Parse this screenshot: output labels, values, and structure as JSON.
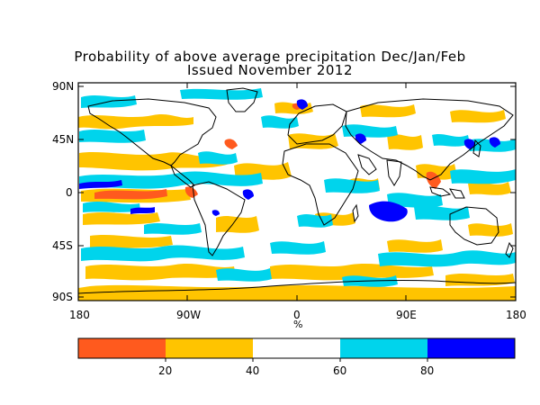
{
  "map": {
    "title": "Probability of above average precipitation Dec/Jan/Feb",
    "subtitle": "Issued November 2012",
    "lat_labels": [
      "90N",
      "45N",
      "0",
      "45S",
      "90S"
    ],
    "lon_labels": [
      "180",
      "90W",
      "0",
      "90E",
      "180"
    ],
    "unit_label": "%",
    "colorbar": {
      "bins": [
        {
          "range": [
            0,
            20
          ],
          "color": "#ff5a1e"
        },
        {
          "range": [
            20,
            40
          ],
          "color": "#ffc400"
        },
        {
          "range": [
            40,
            60
          ],
          "color": "#ffffff"
        },
        {
          "range": [
            60,
            80
          ],
          "color": "#00d4ec"
        },
        {
          "range": [
            80,
            100
          ],
          "color": "#0000ff"
        }
      ],
      "tick_labels": [
        "20",
        "40",
        "60",
        "80"
      ]
    }
  }
}
